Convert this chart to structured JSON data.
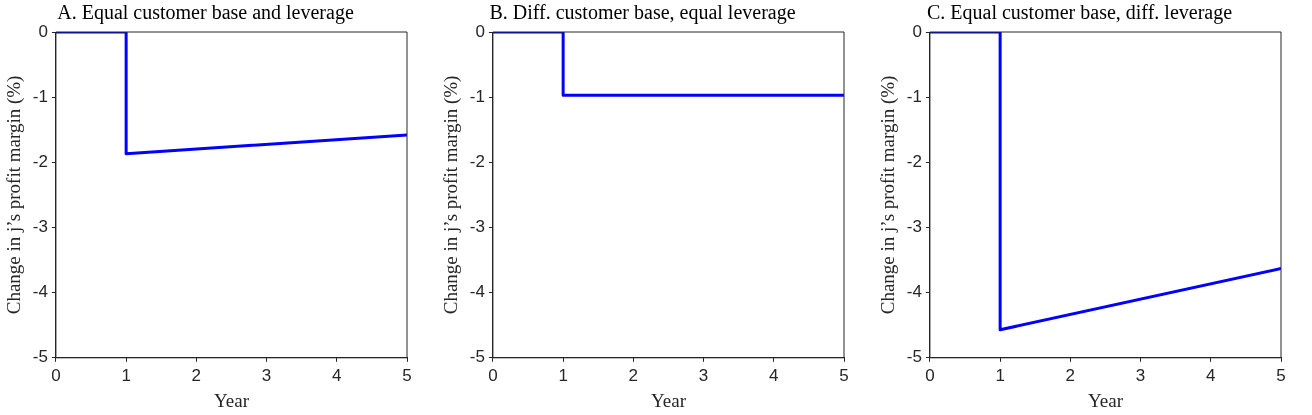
{
  "chart_data": [
    {
      "type": "line",
      "title": "A. Equal customer base and leverage",
      "xlabel": "Year",
      "ylabel": "Change in j’s profit margin (%)",
      "x": [
        0,
        1,
        1,
        5
      ],
      "series": [
        {
          "color": "#0000ff",
          "values": [
            0,
            0,
            -1.87,
            -1.58
          ]
        }
      ],
      "xlim": [
        0,
        5
      ],
      "xticks": [
        0,
        1,
        2,
        3,
        4,
        5
      ],
      "ylim": [
        -5,
        0
      ],
      "yticks": [
        -5,
        -4,
        -3,
        -2,
        -1,
        0
      ],
      "grid": false,
      "legend": false
    },
    {
      "type": "line",
      "title": "B. Diff. customer base, equal leverage",
      "xlabel": "Year",
      "ylabel": "Change in j’s profit margin (%)",
      "x": [
        0,
        1,
        1,
        5
      ],
      "series": [
        {
          "color": "#0000ff",
          "values": [
            0,
            0,
            -0.97,
            -0.97
          ]
        }
      ],
      "xlim": [
        0,
        5
      ],
      "xticks": [
        0,
        1,
        2,
        3,
        4,
        5
      ],
      "ylim": [
        -5,
        0
      ],
      "yticks": [
        -5,
        -4,
        -3,
        -2,
        -1,
        0
      ],
      "grid": false,
      "legend": false
    },
    {
      "type": "line",
      "title": "C. Equal customer base, diff. leverage",
      "xlabel": "Year",
      "ylabel": "Change in j’s profit margin (%)",
      "x": [
        0,
        1,
        1,
        5
      ],
      "series": [
        {
          "color": "#0000ff",
          "values": [
            0,
            0,
            -4.57,
            -3.63
          ]
        }
      ],
      "xlim": [
        0,
        5
      ],
      "xticks": [
        0,
        1,
        2,
        3,
        4,
        5
      ],
      "ylim": [
        -5,
        0
      ],
      "yticks": [
        -5,
        -4,
        -3,
        -2,
        -1,
        0
      ],
      "grid": false,
      "legend": false
    }
  ]
}
